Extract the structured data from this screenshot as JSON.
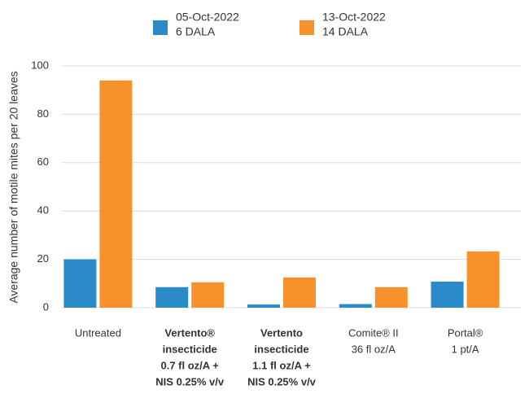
{
  "chart_data": {
    "type": "bar",
    "y_label": "Average number of motile mites per 20 leaves",
    "categories": [
      [
        "Untreated"
      ],
      [
        "Vertento®",
        "insecticide",
        "0.7 fl oz/A +",
        "NIS 0.25% v/v"
      ],
      [
        "Vertento",
        "insecticide",
        "1.1 fl oz/A +",
        "NIS 0.25% v/v"
      ],
      [
        "Comite® II",
        "36 fl oz/A"
      ],
      [
        "Portal®",
        "1 pt/A"
      ]
    ],
    "category_bold": [
      false,
      true,
      true,
      false,
      false
    ],
    "series": [
      {
        "name": [
          "05-Oct-2022",
          "6 DALA"
        ],
        "color": "#2b8bc9",
        "values": [
          20,
          8.5,
          1.3,
          1.5,
          10.8
        ]
      },
      {
        "name": [
          "13-Oct-2022",
          "14 DALA"
        ],
        "color": "#f7912c",
        "values": [
          94,
          10.5,
          12.5,
          8.5,
          23.3
        ]
      }
    ],
    "ylim": [
      0,
      100
    ],
    "yticks": [
      0,
      20,
      40,
      60,
      80,
      100
    ],
    "grid": true
  }
}
